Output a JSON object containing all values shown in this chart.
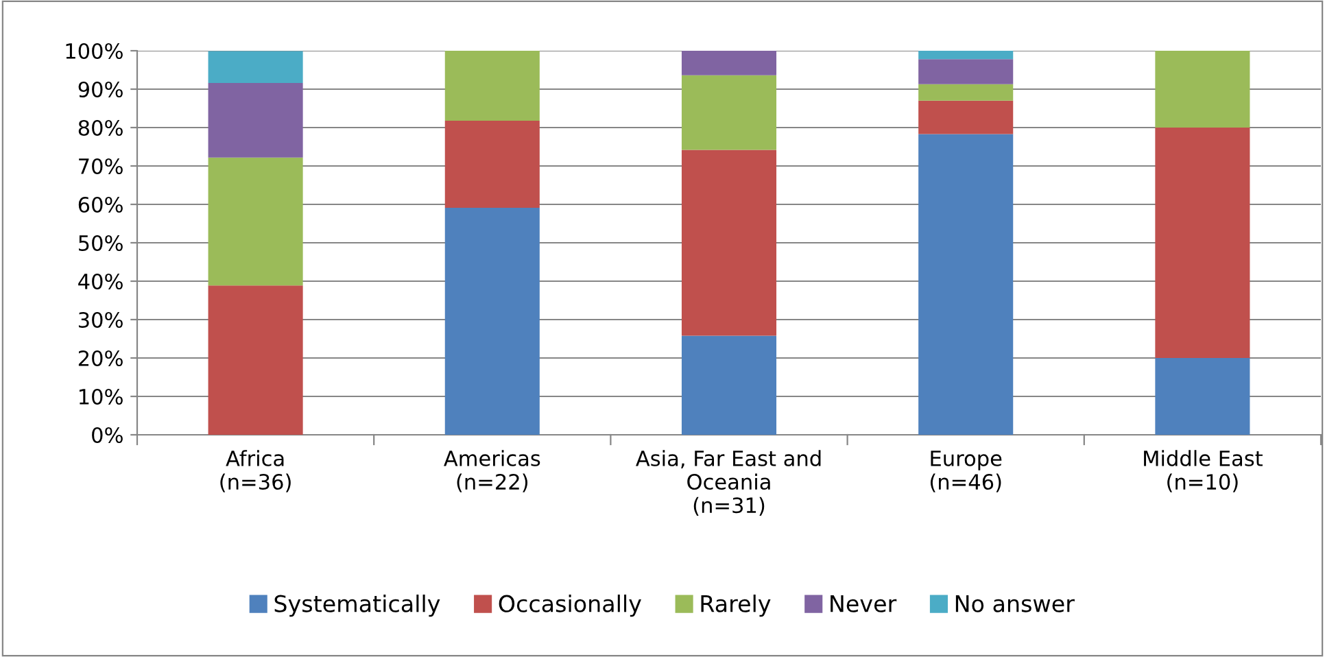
{
  "chart_data": {
    "type": "bar",
    "stacked": true,
    "categories": [
      "Africa\n(n=36)",
      "Americas\n(n=22)",
      "Asia, Far East and\nOceania\n(n=31)",
      "Europe\n(n=46)",
      "Middle East\n(n=10)"
    ],
    "series": [
      {
        "name": "Systematically",
        "color": "#4f81bd",
        "values": [
          0,
          59.1,
          25.8,
          78.3,
          20
        ]
      },
      {
        "name": "Occasionally",
        "color": "#c0504d",
        "values": [
          38.9,
          22.7,
          48.4,
          8.7,
          60
        ]
      },
      {
        "name": "Rarely",
        "color": "#9bbb59",
        "values": [
          33.3,
          18.2,
          19.4,
          4.3,
          20
        ]
      },
      {
        "name": "Never",
        "color": "#8064a2",
        "values": [
          19.4,
          0,
          6.5,
          6.5,
          0
        ]
      },
      {
        "name": "No answer",
        "color": "#4bacc6",
        "values": [
          8.3,
          0,
          0,
          2.2,
          0
        ]
      }
    ],
    "ylim": [
      0,
      100
    ],
    "yticks": [
      {
        "value": 0,
        "label": "0%"
      },
      {
        "value": 10,
        "label": "10%"
      },
      {
        "value": 20,
        "label": "20%"
      },
      {
        "value": 30,
        "label": "30%"
      },
      {
        "value": 40,
        "label": "40%"
      },
      {
        "value": 50,
        "label": "50%"
      },
      {
        "value": 60,
        "label": "60%"
      },
      {
        "value": 70,
        "label": "70%"
      },
      {
        "value": 80,
        "label": "80%"
      },
      {
        "value": 90,
        "label": "90%"
      },
      {
        "value": 100,
        "label": "100%"
      }
    ],
    "grid": "y",
    "legend": "bottom"
  }
}
